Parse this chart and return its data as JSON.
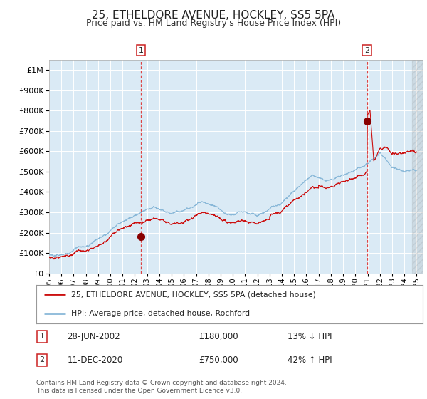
{
  "title": "25, ETHELDORE AVENUE, HOCKLEY, SS5 5PA",
  "subtitle": "Price paid vs. HM Land Registry's House Price Index (HPI)",
  "legend1": "25, ETHELDORE AVENUE, HOCKLEY, SS5 5PA (detached house)",
  "legend2": "HPI: Average price, detached house, Rochford",
  "annotation1_date": "28-JUN-2002",
  "annotation1_price": "£180,000",
  "annotation1_hpi": "13% ↓ HPI",
  "annotation2_date": "11-DEC-2020",
  "annotation2_price": "£750,000",
  "annotation2_hpi": "42% ↑ HPI",
  "footer": "Contains HM Land Registry data © Crown copyright and database right 2024.\nThis data is licensed under the Open Government Licence v3.0.",
  "hpi_color": "#89b8d8",
  "price_color": "#cc1111",
  "marker_color": "#880000",
  "dashed_color": "#dd4444",
  "grid_color": "#ffffff",
  "plot_bg_color": "#daeaf5",
  "ylim_max": 1050000,
  "sale1_year": 2002.49,
  "sale1_value": 180000,
  "sale2_year": 2020.94,
  "sale2_value": 750000,
  "year_start": 1995,
  "year_end": 2025
}
